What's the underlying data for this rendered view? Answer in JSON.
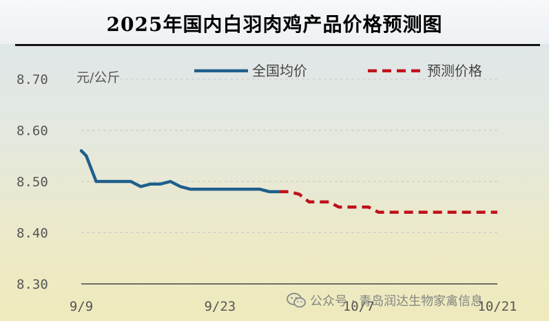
{
  "title": "2025年国内白羽肉鸡产品价格预测图",
  "watermark": "公众号 · 青岛润达生物家禽信息",
  "chart_data": {
    "type": "line",
    "title": "2025年国内白羽肉鸡产品价格预测图",
    "ylabel": "元/公斤",
    "xlabel": "",
    "ylim": [
      8.3,
      8.7
    ],
    "yticks": [
      "8.70",
      "8.60",
      "8.50",
      "8.40",
      "8.30"
    ],
    "ytick_values": [
      8.7,
      8.6,
      8.5,
      8.4,
      8.3
    ],
    "xlim": [
      0,
      42
    ],
    "xticks": [
      {
        "label": "9/9",
        "x": 0
      },
      {
        "label": "9/23",
        "x": 14
      },
      {
        "label": "10/7",
        "x": 28
      },
      {
        "label": "10/21",
        "x": 42
      }
    ],
    "grid": "horizontal-dashed",
    "legend_position": "top",
    "series": [
      {
        "name": "全国均价",
        "style": "solid",
        "color": "#1f5f8b",
        "x": [
          0,
          0.5,
          1.5,
          2,
          3,
          5,
          6,
          7,
          8,
          9,
          10,
          11,
          12,
          13,
          14,
          15,
          16,
          17,
          18,
          19,
          20
        ],
        "y": [
          8.56,
          8.55,
          8.5,
          8.5,
          8.5,
          8.5,
          8.49,
          8.495,
          8.495,
          8.5,
          8.49,
          8.485,
          8.485,
          8.485,
          8.485,
          8.485,
          8.485,
          8.485,
          8.485,
          8.48,
          8.48
        ]
      },
      {
        "name": "预测价格",
        "style": "dashed",
        "color": "#c0111b",
        "x": [
          20,
          21,
          22,
          23,
          24,
          25,
          26,
          27,
          28,
          29,
          30,
          31,
          32,
          33,
          34,
          35,
          36,
          37,
          38,
          39,
          40,
          41,
          42
        ],
        "y": [
          8.48,
          8.48,
          8.475,
          8.46,
          8.46,
          8.46,
          8.45,
          8.45,
          8.45,
          8.45,
          8.44,
          8.44,
          8.44,
          8.44,
          8.44,
          8.44,
          8.44,
          8.44,
          8.44,
          8.44,
          8.44,
          8.44,
          8.44
        ]
      }
    ]
  },
  "colors": {
    "actual": "#1f5f8b",
    "forecast": "#c0111b",
    "axis": "#444444",
    "grid": "#c8c8c8"
  }
}
